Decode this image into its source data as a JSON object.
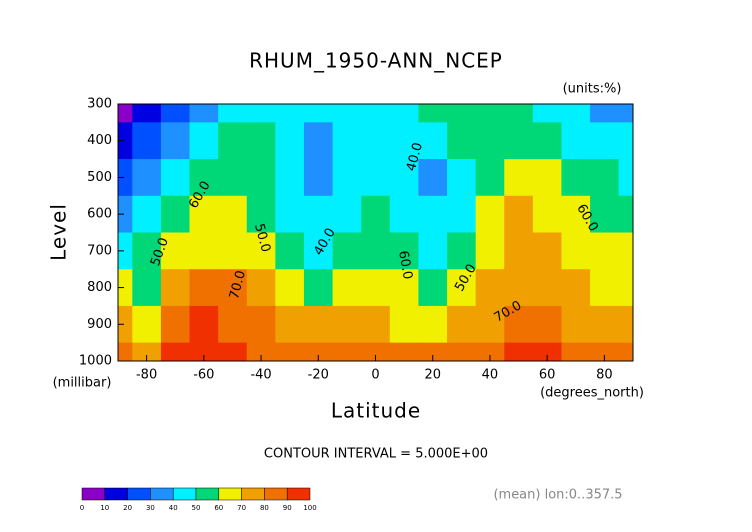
{
  "chart_data": {
    "type": "contour",
    "title": "RHUM_1950-ANN_NCEP",
    "units": "(units:%)",
    "y_label": "Level",
    "y_unit": "(millibar)",
    "x_label": "Latitude",
    "x_unit": "(degrees_north)",
    "contour_interval": "CONTOUR INTERVAL = 5.000E+00",
    "note": "(mean) lon:0..357.5",
    "x": [
      -90,
      -80,
      -70,
      -60,
      -50,
      -40,
      -30,
      -20,
      -10,
      0,
      10,
      20,
      30,
      40,
      50,
      60,
      70,
      80,
      90
    ],
    "y": [
      300,
      400,
      500,
      600,
      700,
      800,
      900,
      1000
    ],
    "z": [
      [
        5,
        15,
        25,
        35,
        45,
        45,
        45,
        40,
        45,
        45,
        45,
        50,
        55,
        55,
        55,
        45,
        40,
        35,
        35
      ],
      [
        15,
        25,
        35,
        40,
        50,
        50,
        40,
        35,
        40,
        45,
        45,
        40,
        50,
        55,
        55,
        50,
        45,
        40,
        40
      ],
      [
        25,
        30,
        40,
        50,
        55,
        50,
        40,
        35,
        40,
        45,
        40,
        35,
        45,
        55,
        65,
        60,
        55,
        50,
        45
      ],
      [
        30,
        40,
        50,
        60,
        60,
        55,
        45,
        40,
        45,
        50,
        45,
        40,
        45,
        60,
        70,
        65,
        60,
        55,
        55
      ],
      [
        45,
        50,
        60,
        65,
        65,
        60,
        50,
        45,
        50,
        55,
        50,
        45,
        50,
        65,
        70,
        70,
        65,
        65,
        60
      ],
      [
        60,
        55,
        70,
        80,
        80,
        70,
        60,
        55,
        60,
        65,
        60,
        55,
        60,
        70,
        75,
        75,
        70,
        65,
        65
      ],
      [
        70,
        65,
        80,
        90,
        85,
        80,
        75,
        70,
        70,
        70,
        65,
        65,
        70,
        75,
        80,
        80,
        75,
        70,
        70
      ],
      [
        80,
        75,
        90,
        95,
        90,
        85,
        85,
        85,
        85,
        85,
        80,
        80,
        85,
        85,
        90,
        90,
        85,
        80,
        80
      ]
    ],
    "xlim": [
      -90,
      90
    ],
    "ylim": [
      1000,
      300
    ],
    "xticks": [
      -80,
      -60,
      -40,
      -20,
      0,
      20,
      40,
      60,
      80
    ],
    "yticks": [
      300,
      400,
      500,
      600,
      700,
      800,
      900,
      1000
    ],
    "levels": [
      0,
      10,
      20,
      30,
      40,
      50,
      60,
      70,
      80,
      90,
      100
    ],
    "colors": [
      "#8a00c8",
      "#0000e0",
      "#0050ff",
      "#1e90ff",
      "#00f0ff",
      "#00d878",
      "#f0f000",
      "#f0a000",
      "#f07000",
      "#f03000"
    ],
    "contour_labels": [
      "60.0",
      "50.0",
      "70.0",
      "50.0",
      "40.0",
      "40.0",
      "60.0",
      "50.0",
      "70.0",
      "60.0"
    ]
  }
}
